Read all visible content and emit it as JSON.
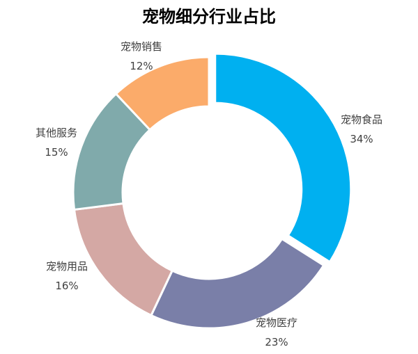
{
  "chart_data": {
    "type": "pie",
    "title": "宠物细分行业占比",
    "slices": [
      {
        "label": "宠物食品",
        "value": 34,
        "percent_label": "34%",
        "color": "#00b0f0",
        "exploded": true
      },
      {
        "label": "宠物医疗",
        "value": 23,
        "percent_label": "23%",
        "color": "#7a7fa8"
      },
      {
        "label": "宠物用品",
        "value": 16,
        "percent_label": "16%",
        "color": "#d4a8a4"
      },
      {
        "label": "其他服务",
        "value": 15,
        "percent_label": "15%",
        "color": "#80aaab"
      },
      {
        "label": "宠物销售",
        "value": 12,
        "percent_label": "12%",
        "color": "#fbab6a"
      }
    ]
  }
}
